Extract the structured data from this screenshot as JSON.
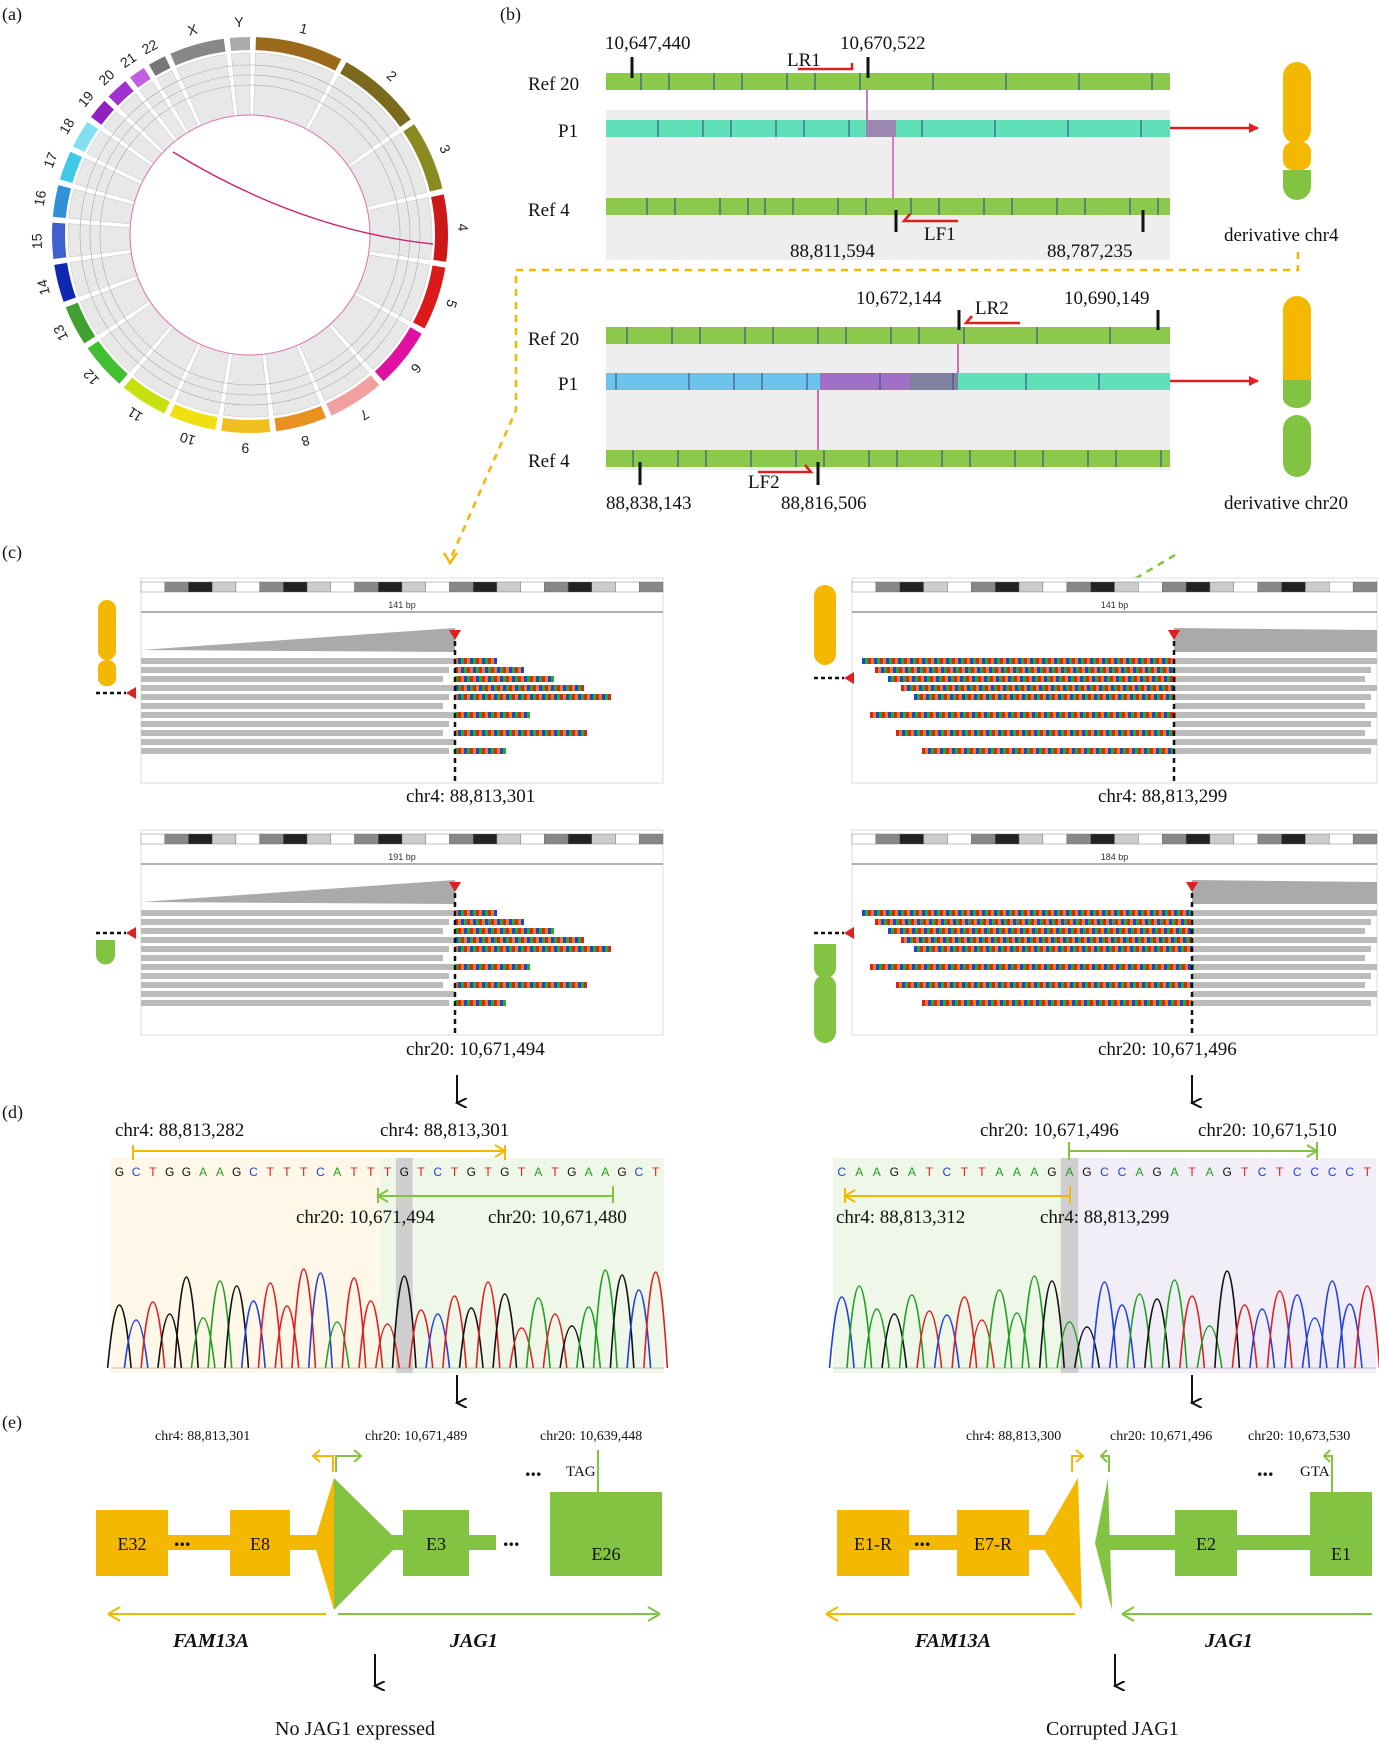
{
  "panels": {
    "a": "(a)",
    "b": "(b)",
    "c": "(c)",
    "d": "(d)",
    "e": "(e)"
  },
  "circos": {
    "chromosomes": [
      "1",
      "2",
      "3",
      "4",
      "5",
      "6",
      "7",
      "8",
      "9",
      "10",
      "11",
      "12",
      "13",
      "14",
      "15",
      "16",
      "17",
      "18",
      "19",
      "20",
      "21",
      "22",
      "X",
      "Y"
    ],
    "colors": [
      "#9a6a1a",
      "#7a6a1e",
      "#8a8a20",
      "#cc1818",
      "#dd1a1a",
      "#e010a0",
      "#f0a0a0",
      "#e89020",
      "#f0c020",
      "#f0e010",
      "#c8e010",
      "#40c030",
      "#40a030",
      "#1028b0",
      "#4060d0",
      "#3090d8",
      "#40c8e8",
      "#80e0f0",
      "#9020c0",
      "#a030d0",
      "#c060e0",
      "#777777",
      "#888888",
      "#aaaaaa"
    ]
  },
  "panel_b": {
    "top": {
      "ref20_label": "Ref 20",
      "p1_label": "P1",
      "ref4_label": "Ref 4",
      "pos_r20_left": "10,647,440",
      "pos_r20_right": "10,670,522",
      "pos_r4_left": "88,811,594",
      "pos_r4_right": "88,787,235",
      "primer_r": "LR1",
      "primer_f": "LF1",
      "derivative": "derivative chr4"
    },
    "bottom": {
      "ref20_label": "Ref 20",
      "p1_label": "P1",
      "ref4_label": "Ref 4",
      "pos_r20_left": "10,672,144",
      "pos_r20_right": "10,690,149",
      "pos_r4_left": "88,838,143",
      "pos_r4_right": "88,816,506",
      "primer_r": "LR2",
      "primer_f": "LF2",
      "derivative": "derivative chr20"
    }
  },
  "panel_c": {
    "left_top": {
      "caption": "chr4: 88,813,301",
      "span": "141 bp"
    },
    "right_top": {
      "caption": "chr4: 88,813,299",
      "span": "141 bp"
    },
    "left_bottom": {
      "caption": "chr20: 10,671,494",
      "span": "191 bp"
    },
    "right_bottom": {
      "caption": "chr20: 10,671,496",
      "span": "184 bp"
    }
  },
  "panel_d": {
    "left": {
      "sequence": "GCTGGAAGCTTTCATTTGTCTGTGTATGAAGCT",
      "chr4_start": "chr4: 88,813,282",
      "chr4_end": "chr4: 88,813,301",
      "chr20_start": "chr20: 10,671,494",
      "chr20_end": "chr20: 10,671,480"
    },
    "right": {
      "sequence": "CAAGATCTTAAAGAGCCAGATAGTCTCCCCT",
      "chr20_start": "chr20: 10,671,496",
      "chr20_end": "chr20: 10,671,510",
      "chr4_start": "chr4: 88,813,312",
      "chr4_end": "chr4: 88,813,299"
    }
  },
  "panel_e": {
    "left": {
      "chr4_pos": "chr4: 88,813,301",
      "chr20_pos": "chr20: 10,671,489",
      "chr20_far": "chr20: 10,639,448",
      "codon": "TAG",
      "ellipsis": "...",
      "exons": [
        "E32",
        "E8",
        "E3",
        "E26"
      ],
      "gene_left": "FAM13A",
      "gene_right": "JAG1",
      "result": "No JAG1 expressed"
    },
    "right": {
      "chr4_pos": "chr4: 88,813,300",
      "chr20_pos": "chr20: 10,671,496",
      "chr20_far": "chr20: 10,673,530",
      "codon": "GTA",
      "ellipsis": "...",
      "exons": [
        "E1-R",
        "E7-R",
        "E2",
        "E1"
      ],
      "gene_left": "FAM13A",
      "gene_right": "JAG1",
      "result": "Corrupted JAG1"
    }
  },
  "colors": {
    "chr4": "#f5b800",
    "chr20": "#82c341",
    "arrow": "#e02020",
    "ref_bar": "#8cc84b",
    "p1_bar": "#5fe0b8",
    "p1_blue": "#6cc4ee",
    "purple": "#a070c8"
  }
}
